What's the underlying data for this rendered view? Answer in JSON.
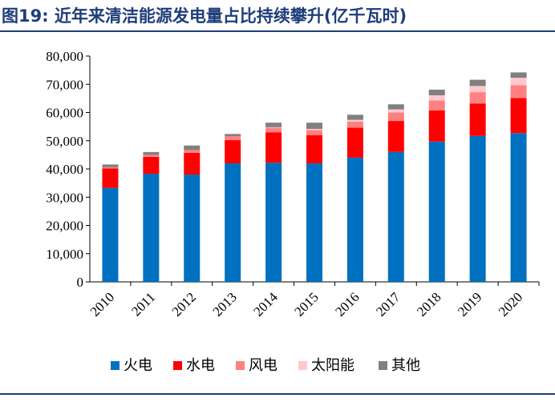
{
  "figure": {
    "title": "图19:  近年来清洁能源发电量占比持续攀升(亿千瓦时)"
  },
  "chart_data": {
    "type": "bar",
    "stacked": true,
    "categories": [
      "2010",
      "2011",
      "2012",
      "2013",
      "2014",
      "2015",
      "2016",
      "2017",
      "2018",
      "2019",
      "2020"
    ],
    "series": [
      {
        "name": "火电",
        "color": "#0070c0",
        "values": [
          33300,
          38300,
          38000,
          42000,
          42200,
          42000,
          44000,
          46000,
          49700,
          51700,
          52700
        ]
      },
      {
        "name": "水电",
        "color": "#ff0000",
        "values": [
          6900,
          6000,
          7700,
          8200,
          10800,
          10000,
          10600,
          11000,
          11000,
          11500,
          12400
        ]
      },
      {
        "name": "风电",
        "color": "#ff8080",
        "values": [
          400,
          700,
          1000,
          1400,
          1600,
          1800,
          2200,
          3000,
          3600,
          4000,
          4600
        ]
      },
      {
        "name": "太阳能",
        "color": "#ffc7ce",
        "values": [
          0,
          0,
          0,
          0,
          200,
          400,
          600,
          1100,
          1800,
          2200,
          2600
        ]
      },
      {
        "name": "其他",
        "color": "#808080",
        "values": [
          1000,
          1000,
          1600,
          800,
          1600,
          2200,
          1800,
          1800,
          2000,
          2200,
          1900
        ]
      }
    ],
    "yticks": [
      "0",
      "10,000",
      "20,000",
      "30,000",
      "40,000",
      "50,000",
      "60,000",
      "70,000",
      "80,000"
    ],
    "ylim": [
      0,
      80000
    ],
    "grid": false,
    "legend_position": "bottom"
  }
}
